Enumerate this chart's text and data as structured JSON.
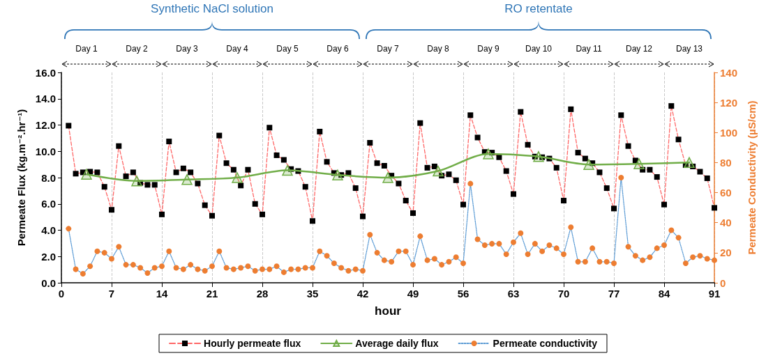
{
  "chart_data": {
    "type": "line",
    "xlabel": "hour",
    "ylabel": "Permeate Flux (kg.m⁻².hr⁻¹)",
    "y2label": "Permeate Conductivity (µS/cm)",
    "x": [
      1,
      2,
      3,
      4,
      5,
      6,
      7,
      8,
      9,
      10,
      11,
      12,
      13,
      14,
      15,
      16,
      17,
      18,
      19,
      20,
      21,
      22,
      23,
      24,
      25,
      26,
      27,
      28,
      29,
      30,
      31,
      32,
      33,
      34,
      35,
      36,
      37,
      38,
      39,
      40,
      41,
      42,
      43,
      44,
      45,
      46,
      47,
      48,
      49,
      50,
      51,
      52,
      53,
      54,
      55,
      56,
      57,
      58,
      59,
      60,
      61,
      62,
      63,
      64,
      65,
      66,
      67,
      68,
      69,
      70,
      71,
      72,
      73,
      74,
      75,
      76,
      77,
      78,
      79,
      80,
      81,
      82,
      83,
      84,
      85,
      86,
      87,
      88,
      89,
      90,
      91
    ],
    "series": [
      {
        "name": "Hourly permeate flux",
        "color": "#000000",
        "marker": "square",
        "line_style": "dashed",
        "values": [
          11.95,
          8.3,
          8.4,
          8.45,
          8.4,
          7.3,
          5.55,
          10.4,
          8.1,
          8.4,
          7.6,
          7.45,
          7.45,
          5.2,
          10.75,
          8.4,
          8.7,
          8.4,
          7.55,
          5.9,
          5.1,
          11.2,
          9.1,
          8.6,
          7.4,
          8.6,
          6.0,
          5.2,
          11.8,
          9.7,
          9.35,
          8.65,
          8.5,
          7.3,
          4.7,
          11.5,
          9.2,
          8.35,
          8.2,
          8.35,
          7.2,
          5.05,
          10.65,
          9.1,
          8.9,
          8.15,
          7.55,
          6.25,
          5.3,
          12.15,
          8.75,
          8.85,
          8.15,
          8.25,
          7.8,
          5.95,
          12.75,
          11.05,
          9.95,
          9.9,
          9.55,
          8.5,
          6.75,
          13.0,
          10.5,
          9.6,
          9.55,
          9.45,
          8.75,
          6.25,
          13.2,
          9.9,
          9.45,
          9.1,
          8.4,
          7.2,
          5.65,
          12.75,
          10.4,
          9.3,
          8.6,
          8.6,
          8.05,
          5.95,
          13.45,
          10.9,
          8.95,
          8.85,
          8.45,
          7.95,
          5.7
        ]
      },
      {
        "name": "Average daily flux",
        "color": "#70ad47",
        "marker": "triangle",
        "line_style": "solid",
        "x": [
          3.5,
          10.5,
          17.5,
          24.5,
          31.5,
          38.5,
          45.5,
          52.5,
          59.5,
          66.5,
          73.5,
          80.5,
          87.5
        ],
        "values": [
          8.25,
          7.75,
          7.85,
          8.0,
          8.55,
          8.2,
          8.0,
          8.5,
          9.8,
          9.6,
          9.0,
          9.05,
          9.15
        ]
      },
      {
        "name": "Permeate conductivity",
        "color": "#ed7d31",
        "marker": "circle",
        "line_style": "dotted",
        "axis": "y2",
        "values": [
          36,
          9,
          6,
          11,
          21,
          20,
          16,
          24,
          12,
          12,
          10,
          6.5,
          10,
          11,
          21,
          10,
          9,
          12,
          9,
          8,
          11,
          21,
          10,
          9,
          10,
          11,
          8,
          9,
          9,
          11,
          7,
          9,
          9,
          10,
          10,
          21,
          18,
          13,
          10,
          8,
          9,
          8,
          32,
          20,
          15,
          14,
          21,
          21,
          12,
          31,
          15,
          16,
          12,
          14,
          17,
          13,
          66,
          29,
          25,
          26,
          26,
          19,
          27,
          33,
          19,
          26,
          21,
          25,
          23,
          19,
          37,
          14,
          14,
          23,
          14,
          14,
          13,
          70,
          24,
          18,
          15,
          17,
          23,
          25,
          35,
          30,
          13,
          17,
          18,
          16,
          15
        ]
      }
    ],
    "xlim": [
      0,
      91
    ],
    "xticks": [
      0,
      7,
      14,
      21,
      28,
      35,
      42,
      49,
      56,
      63,
      70,
      77,
      84,
      91
    ],
    "ylim": [
      0,
      16
    ],
    "yticks": [
      {
        "value": 0,
        "label": "0.0"
      },
      {
        "value": 2,
        "label": "2.0"
      },
      {
        "value": 4,
        "label": "4.0"
      },
      {
        "value": 6,
        "label": "6.0"
      },
      {
        "value": 8,
        "label": "8.0"
      },
      {
        "value": 10,
        "label": "10.0"
      },
      {
        "value": 12,
        "label": "12.0"
      },
      {
        "value": 14,
        "label": "14.0"
      },
      {
        "value": 16,
        "label": "16.0"
      }
    ],
    "y2lim": [
      0,
      140
    ],
    "y2ticks": [
      0,
      20,
      40,
      60,
      80,
      100,
      120,
      140
    ],
    "grid": "x",
    "legend": "bottom",
    "annotations": [
      "Synthetic NaCl solution",
      "RO retentate",
      "Day 1",
      "Day 2",
      "Day 3",
      "Day 4",
      "Day 5",
      "Day 6",
      "Day 7",
      "Day 8",
      "Day 9",
      "Day 10",
      "Day 11",
      "Day 12",
      "Day 13"
    ]
  }
}
